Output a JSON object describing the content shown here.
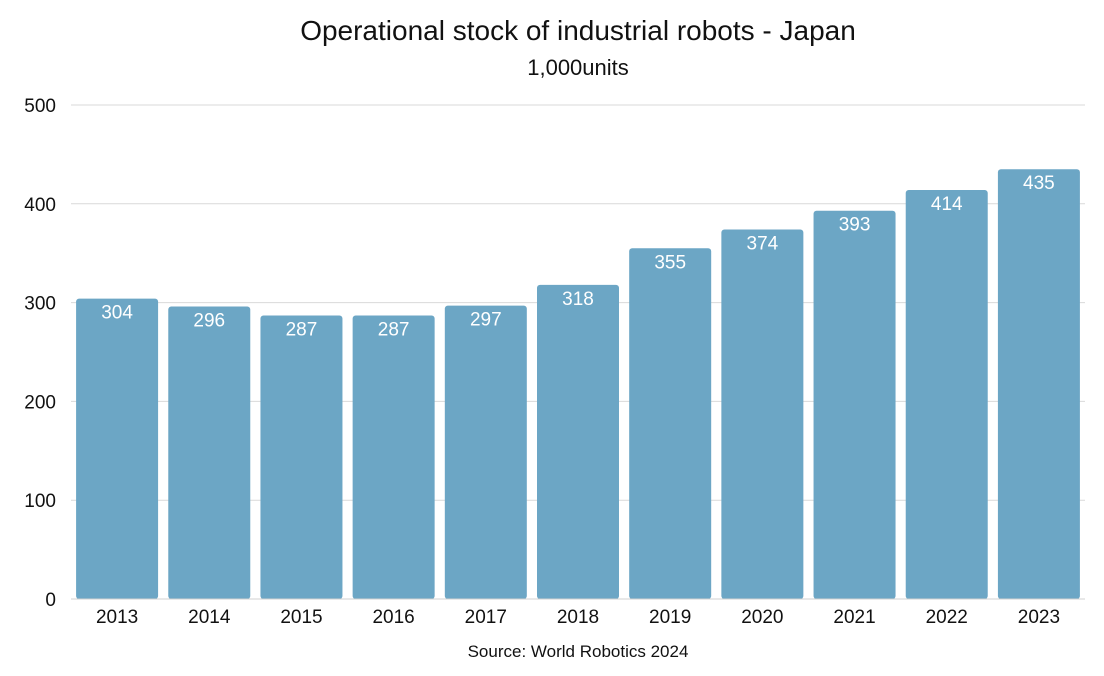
{
  "chart_data": {
    "type": "bar",
    "title": "Operational stock of industrial robots - Japan",
    "subtitle": "1,000units",
    "source": "Source: World Robotics 2024",
    "categories": [
      "2013",
      "2014",
      "2015",
      "2016",
      "2017",
      "2018",
      "2019",
      "2020",
      "2021",
      "2022",
      "2023"
    ],
    "values": [
      304,
      296,
      287,
      287,
      297,
      318,
      355,
      374,
      393,
      414,
      435
    ],
    "ylim": [
      0,
      500
    ],
    "yticks": [
      0,
      100,
      200,
      300,
      400,
      500
    ],
    "grid": true,
    "legend": "none",
    "colors": {
      "bar": "#6ca6c5",
      "grid": "#d9d9d9",
      "label": "#ffffff",
      "text": "#111111"
    }
  }
}
